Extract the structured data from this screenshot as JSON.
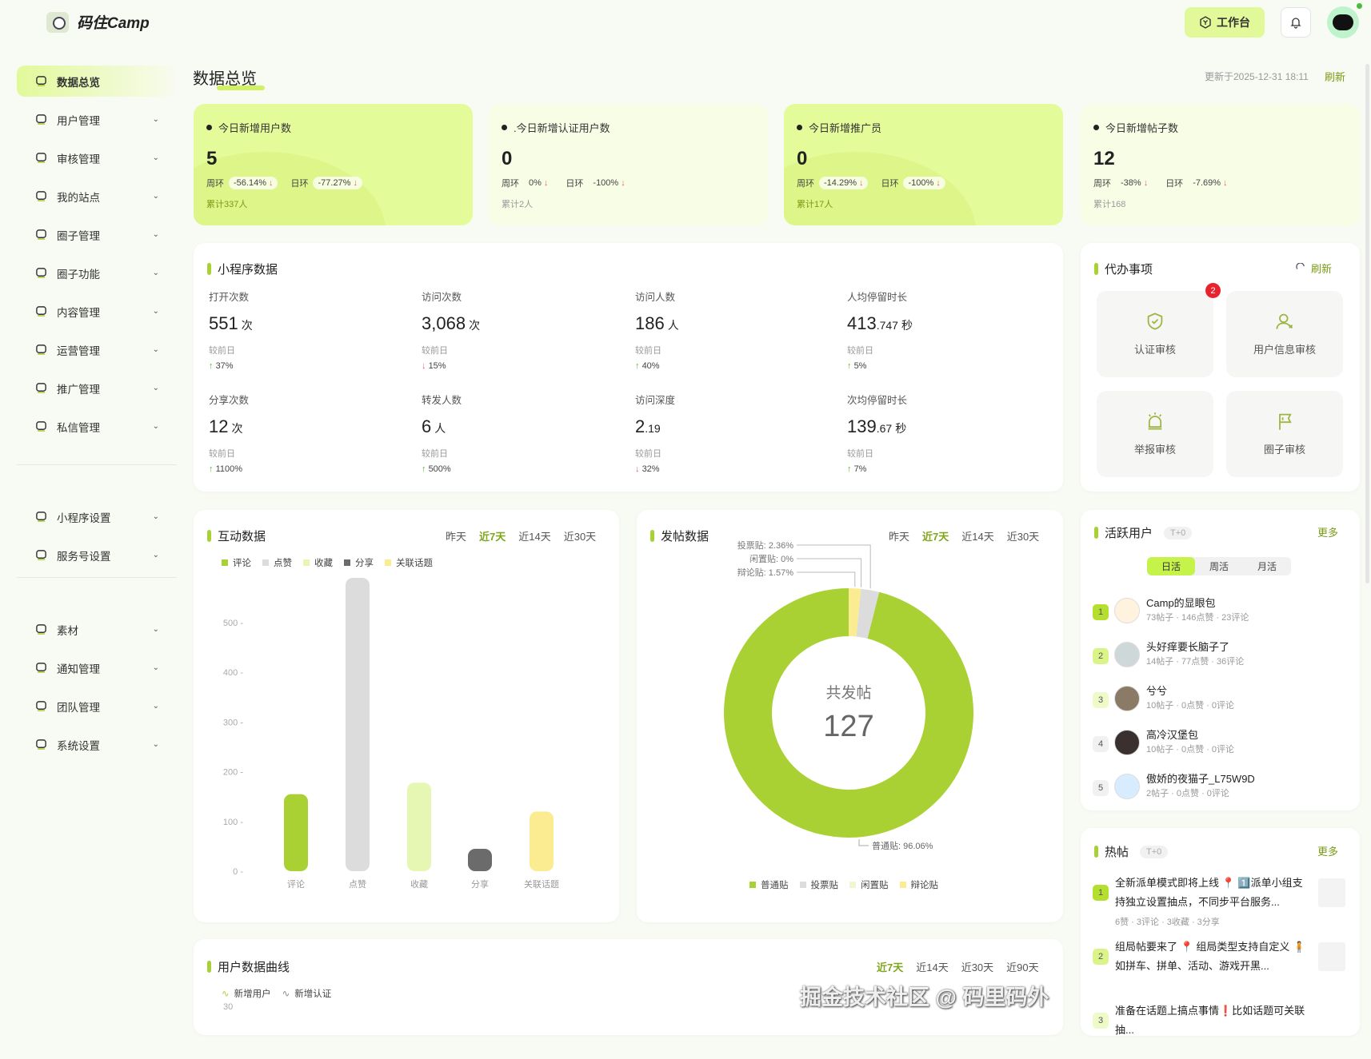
{
  "header": {
    "brand": "码住Camp",
    "workbench": "工作台",
    "notifications_icon": "bell-icon"
  },
  "sidebar": {
    "groups": [
      [
        {
          "label": "数据总览",
          "icon": "monitor-chart-icon",
          "active": true
        },
        {
          "label": "用户管理",
          "icon": "user-list-icon"
        },
        {
          "label": "审核管理",
          "icon": "stamp-icon"
        },
        {
          "label": "我的站点",
          "icon": "store-icon"
        },
        {
          "label": "圈子管理",
          "icon": "planet-icon"
        },
        {
          "label": "圈子功能",
          "icon": "layers-icon"
        },
        {
          "label": "内容管理",
          "icon": "document-icon"
        },
        {
          "label": "运营管理",
          "icon": "nodes-icon"
        },
        {
          "label": "推广管理",
          "icon": "megaphone-icon"
        },
        {
          "label": "私信管理",
          "icon": "mail-icon"
        }
      ],
      [
        {
          "label": "小程序设置",
          "icon": "miniprogram-icon"
        },
        {
          "label": "服务号设置",
          "icon": "gear-icon"
        }
      ],
      [
        {
          "label": "素材",
          "icon": "folder-icon"
        },
        {
          "label": "通知管理",
          "icon": "bell-icon"
        },
        {
          "label": "团队管理",
          "icon": "team-icon"
        },
        {
          "label": "系统设置",
          "icon": "settings-icon"
        }
      ]
    ]
  },
  "page": {
    "title": "数据总览",
    "updated": "更新于2025-12-31 18:11",
    "refresh": "刷新"
  },
  "stat_cards": [
    {
      "title": "今日新增用户数",
      "value": "5",
      "week_label": "周环",
      "week": "-56.14%",
      "day_label": "日环",
      "day": "-77.27%",
      "total": "累计337人",
      "style": "lime"
    },
    {
      "title": ".今日新增认证用户数",
      "value": "0",
      "week_label": "周环",
      "week": "0%",
      "day_label": "日环",
      "day": "-100%",
      "total": "累计2人",
      "style": "pale"
    },
    {
      "title": "今日新增推广员",
      "value": "0",
      "week_label": "周环",
      "week": "-14.29%",
      "day_label": "日环",
      "day": "-100%",
      "total": "累计17人",
      "style": "lime"
    },
    {
      "title": "今日新增帖子数",
      "value": "12",
      "week_label": "周环",
      "week": "-38%",
      "day_label": "日环",
      "day": "-7.69%",
      "total": "累计168",
      "style": "pale"
    }
  ],
  "miniprogram": {
    "title": "小程序数据",
    "compare_label": "较前日",
    "metrics": [
      {
        "label": "打开次数",
        "value": "551",
        "decimal": "",
        "unit": "次",
        "trend": "up",
        "pct": "37%"
      },
      {
        "label": "访问次数",
        "value": "3,068",
        "decimal": "",
        "unit": "次",
        "trend": "down",
        "pct": "15%"
      },
      {
        "label": "访问人数",
        "value": "186",
        "decimal": "",
        "unit": "人",
        "trend": "up",
        "pct": "40%"
      },
      {
        "label": "人均停留时长",
        "value": "413",
        "decimal": ".747",
        "unit": "秒",
        "trend": "up",
        "pct": "5%"
      },
      {
        "label": "分享次数",
        "value": "12",
        "decimal": "",
        "unit": "次",
        "trend": "up",
        "pct": "1100%"
      },
      {
        "label": "转发人数",
        "value": "6",
        "decimal": "",
        "unit": "人",
        "trend": "up",
        "pct": "500%"
      },
      {
        "label": "访问深度",
        "value": "2",
        "decimal": ".19",
        "unit": "",
        "trend": "down",
        "pct": "32%"
      },
      {
        "label": "次均停留时长",
        "value": "139",
        "decimal": ".67",
        "unit": "秒",
        "trend": "up",
        "pct": "7%"
      }
    ]
  },
  "todo": {
    "title": "代办事项",
    "refresh": "刷新",
    "items": [
      {
        "label": "认证审核",
        "icon": "shield-check-icon",
        "badge": "2"
      },
      {
        "label": "用户信息审核",
        "icon": "user-edit-icon"
      },
      {
        "label": "举报审核",
        "icon": "alarm-light-icon"
      },
      {
        "label": "圈子审核",
        "icon": "flag-icon"
      }
    ]
  },
  "ranges": {
    "four": [
      "昨天",
      "近7天",
      "近14天",
      "近30天"
    ],
    "curve": [
      "近7天",
      "近14天",
      "近30天",
      "近90天"
    ],
    "active": "近7天"
  },
  "interaction": {
    "title": "互动数据"
  },
  "posts": {
    "title": "发帖数据",
    "center_label": "共发帖",
    "total": "127"
  },
  "chart_data": [
    {
      "type": "bar",
      "categories": [
        "评论",
        "点赞",
        "收藏",
        "分享",
        "关联话题"
      ],
      "values": [
        155,
        590,
        178,
        45,
        120
      ],
      "colors": [
        "#a9d133",
        "#dcdcdc",
        "#e6f7b4",
        "#6b6b6b",
        "#fbec91"
      ],
      "legend": [
        "评论",
        "点赞",
        "收藏",
        "分享",
        "关联话题"
      ],
      "legend_position": "top-left",
      "yticks": [
        0,
        100,
        200,
        300,
        400,
        500
      ],
      "ylim": [
        0,
        600
      ],
      "grid": false
    },
    {
      "type": "pie",
      "donut": true,
      "categories": [
        "普通贴",
        "投票贴",
        "闲置贴",
        "辩论贴"
      ],
      "values": [
        96.06,
        2.36,
        0,
        1.57
      ],
      "colors": [
        "#a9d133",
        "#dcdcdc",
        "#eef7cf",
        "#fbec91"
      ],
      "labels": [
        "普通贴: 96.06%",
        "投票贴: 2.36%",
        "闲置贴: 0%",
        "辩论贴: 1.57%"
      ],
      "legend_position": "bottom"
    },
    {
      "type": "line",
      "title": "用户数据曲线",
      "series": [
        {
          "name": "新增用户"
        },
        {
          "name": "新增认证"
        }
      ],
      "yticks_visible": [
        30
      ]
    }
  ],
  "active_users": {
    "title": "活跃用户",
    "tag": "T+0",
    "more": "更多",
    "tabs": [
      "日活",
      "周活",
      "月活"
    ],
    "active_tab": "日活",
    "list": [
      {
        "rank": "1",
        "name": "Camp的显眼包",
        "stats": "73帖子 · 146点赞 · 23评论"
      },
      {
        "rank": "2",
        "name": "头好痒要长脑子了",
        "stats": "14帖子 · 77点赞 · 36评论"
      },
      {
        "rank": "3",
        "name": "兮兮",
        "stats": "10帖子 · 0点赞 · 0评论"
      },
      {
        "rank": "4",
        "name": "高冷汉堡包",
        "stats": "10帖子 · 0点赞 · 0评论"
      },
      {
        "rank": "5",
        "name": "傲娇的夜猫子_L75W9D",
        "stats": "2帖子 · 0点赞 · 0评论"
      }
    ]
  },
  "hot_posts": {
    "title": "热帖",
    "tag": "T+0",
    "more": "更多",
    "list": [
      {
        "rank": "1",
        "title": "全新派单模式即将上线 📍 1️⃣派单小组支持独立设置抽点，不同步平台服务...",
        "stats": "6赞 · 3评论 · 3收藏 · 3分享"
      },
      {
        "rank": "2",
        "title": "组局帖要来了 📍 组局类型支持自定义 🧍如拼车、拼单、活动、游戏开黑...",
        "stats": ""
      },
      {
        "rank": "3",
        "title": "准备在话题上搞点事情❗比如话题可关联抽...",
        "stats": ""
      }
    ]
  },
  "watermark": "掘金技术社区 @ 码里码外"
}
